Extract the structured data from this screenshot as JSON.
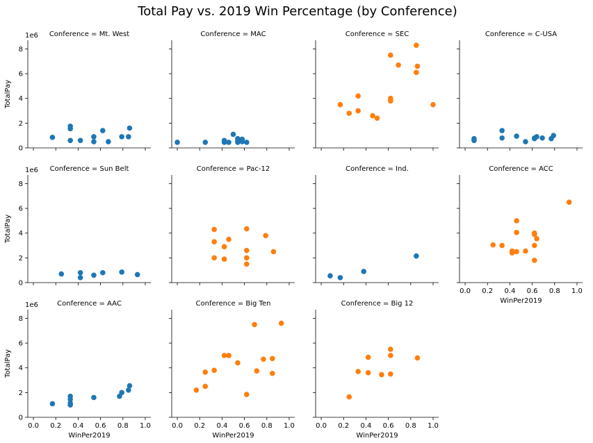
{
  "title": "Total Pay vs. 2019 Win Percentage (by Conference)",
  "colors": {
    "group_a": "#1f77b4",
    "group_b": "#ff7f0e"
  },
  "chart_data": {
    "type": "scatter",
    "xlabel": "WinPer2019",
    "ylabel": "TotalPay",
    "y_offset_label": "1e6",
    "xlim": [
      -0.05,
      1.05
    ],
    "ylim": [
      0,
      8.7
    ],
    "x_ticks": [
      "0.0",
      "0.2",
      "0.4",
      "0.6",
      "0.8",
      "1.0"
    ],
    "y_ticks": [
      "0",
      "2",
      "4",
      "6",
      "8"
    ],
    "panels": [
      {
        "title": "Conference = Mt. West",
        "color": "group_a",
        "points": [
          [
            0.17,
            0.85
          ],
          [
            0.33,
            1.55
          ],
          [
            0.33,
            1.75
          ],
          [
            0.33,
            0.6
          ],
          [
            0.42,
            0.6
          ],
          [
            0.54,
            0.5
          ],
          [
            0.54,
            0.9
          ],
          [
            0.62,
            1.4
          ],
          [
            0.67,
            0.5
          ],
          [
            0.79,
            0.9
          ],
          [
            0.85,
            0.9
          ],
          [
            0.86,
            1.6
          ]
        ]
      },
      {
        "title": "Conference = MAC",
        "color": "group_a",
        "points": [
          [
            0.0,
            0.45
          ],
          [
            0.25,
            0.45
          ],
          [
            0.42,
            0.45
          ],
          [
            0.42,
            0.6
          ],
          [
            0.46,
            0.45
          ],
          [
            0.5,
            1.1
          ],
          [
            0.54,
            0.45
          ],
          [
            0.54,
            0.6
          ],
          [
            0.54,
            0.75
          ],
          [
            0.58,
            0.5
          ],
          [
            0.58,
            0.7
          ],
          [
            0.62,
            0.45
          ]
        ]
      },
      {
        "title": "Conference = SEC",
        "color": "group_b",
        "points": [
          [
            0.17,
            3.5
          ],
          [
            0.25,
            2.8
          ],
          [
            0.33,
            4.2
          ],
          [
            0.33,
            3.0
          ],
          [
            0.46,
            2.6
          ],
          [
            0.5,
            2.4
          ],
          [
            0.62,
            3.8
          ],
          [
            0.62,
            4.0
          ],
          [
            0.62,
            7.5
          ],
          [
            0.69,
            6.7
          ],
          [
            0.85,
            8.3
          ],
          [
            0.85,
            6.1
          ],
          [
            0.86,
            6.6
          ],
          [
            1.0,
            3.5
          ]
        ]
      },
      {
        "title": "Conference = C-USA",
        "color": "group_a",
        "points": [
          [
            0.08,
            0.6
          ],
          [
            0.08,
            0.75
          ],
          [
            0.33,
            1.4
          ],
          [
            0.33,
            0.8
          ],
          [
            0.46,
            0.95
          ],
          [
            0.54,
            0.5
          ],
          [
            0.62,
            0.75
          ],
          [
            0.62,
            0.8
          ],
          [
            0.64,
            0.9
          ],
          [
            0.69,
            0.8
          ],
          [
            0.77,
            0.75
          ],
          [
            0.79,
            1.0
          ]
        ]
      },
      {
        "title": "Conference = Sun Belt",
        "color": "group_a",
        "points": [
          [
            0.25,
            0.7
          ],
          [
            0.42,
            0.8
          ],
          [
            0.42,
            0.4
          ],
          [
            0.54,
            0.6
          ],
          [
            0.62,
            0.8
          ],
          [
            0.79,
            0.85
          ],
          [
            0.93,
            0.65
          ]
        ]
      },
      {
        "title": "Conference = Pac-12",
        "color": "group_b",
        "points": [
          [
            0.33,
            4.3
          ],
          [
            0.33,
            3.3
          ],
          [
            0.33,
            2.0
          ],
          [
            0.42,
            2.9
          ],
          [
            0.42,
            1.9
          ],
          [
            0.46,
            3.5
          ],
          [
            0.62,
            4.35
          ],
          [
            0.62,
            2.6
          ],
          [
            0.62,
            2.0
          ],
          [
            0.62,
            1.5
          ],
          [
            0.79,
            3.8
          ],
          [
            0.86,
            2.5
          ]
        ]
      },
      {
        "title": "Conference = Ind.",
        "color": "group_a",
        "points": [
          [
            0.08,
            0.55
          ],
          [
            0.17,
            0.4
          ],
          [
            0.38,
            0.9
          ],
          [
            0.85,
            2.15
          ]
        ]
      },
      {
        "title": "Conference = ACC",
        "color": "group_b",
        "points": [
          [
            0.25,
            3.05
          ],
          [
            0.33,
            3.0
          ],
          [
            0.42,
            2.55
          ],
          [
            0.42,
            2.4
          ],
          [
            0.46,
            5.0
          ],
          [
            0.46,
            4.05
          ],
          [
            0.46,
            2.5
          ],
          [
            0.54,
            2.55
          ],
          [
            0.62,
            4.0
          ],
          [
            0.62,
            3.9
          ],
          [
            0.62,
            3.0
          ],
          [
            0.62,
            1.8
          ],
          [
            0.64,
            3.55
          ],
          [
            0.93,
            6.5
          ]
        ]
      },
      {
        "title": "Conference = AAC",
        "color": "group_a",
        "points": [
          [
            0.17,
            1.1
          ],
          [
            0.33,
            1.0
          ],
          [
            0.33,
            1.15
          ],
          [
            0.33,
            1.45
          ],
          [
            0.33,
            1.7
          ],
          [
            0.54,
            1.6
          ],
          [
            0.77,
            1.7
          ],
          [
            0.79,
            2.0
          ],
          [
            0.85,
            2.2
          ],
          [
            0.86,
            2.55
          ]
        ]
      },
      {
        "title": "Conference = Big Ten",
        "color": "group_b",
        "points": [
          [
            0.17,
            2.2
          ],
          [
            0.25,
            3.65
          ],
          [
            0.25,
            2.5
          ],
          [
            0.33,
            3.8
          ],
          [
            0.42,
            5.0
          ],
          [
            0.46,
            5.0
          ],
          [
            0.54,
            4.4
          ],
          [
            0.62,
            1.85
          ],
          [
            0.69,
            7.5
          ],
          [
            0.71,
            3.75
          ],
          [
            0.77,
            4.7
          ],
          [
            0.85,
            4.75
          ],
          [
            0.85,
            3.55
          ],
          [
            0.93,
            7.6
          ]
        ]
      },
      {
        "title": "Conference = Big 12",
        "color": "group_b",
        "points": [
          [
            0.25,
            1.65
          ],
          [
            0.33,
            3.7
          ],
          [
            0.42,
            4.85
          ],
          [
            0.42,
            3.6
          ],
          [
            0.54,
            3.45
          ],
          [
            0.62,
            5.5
          ],
          [
            0.62,
            5.0
          ],
          [
            0.62,
            3.5
          ],
          [
            0.86,
            4.8
          ]
        ]
      }
    ]
  }
}
